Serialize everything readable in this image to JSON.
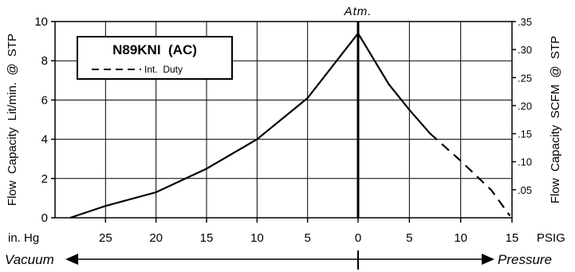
{
  "chart_data": {
    "type": "line",
    "model_label": "N89KNI  (AC)",
    "legend_entry": "Int.  Duty",
    "top_label": "Atm.",
    "left_axis_label": "Flow  Capacity  Lit/min.  @  STP",
    "right_axis_label": "Flow  Capacity  SCFM  @  STP",
    "left_y_ticks": [
      "0",
      "2",
      "4",
      "6",
      "8",
      "10"
    ],
    "left_ylim": [
      0,
      10
    ],
    "right_y_ticks": [
      ".05",
      ".10",
      ".15",
      ".20",
      ".25",
      ".30",
      ".35"
    ],
    "x_unit_left": "in. Hg",
    "x_unit_right": "PSIG",
    "x_ticks_vacuum": [
      "25",
      "20",
      "15",
      "10",
      "5"
    ],
    "x_tick_zero": "0",
    "x_ticks_pressure": [
      "5",
      "10",
      "15"
    ],
    "vacuum_label": "Vacuum",
    "pressure_label": "Pressure",
    "grid": true,
    "series": [
      {
        "region": "vacuum",
        "style": "solid",
        "x_in_hg": [
          28.5,
          25,
          20,
          15,
          10,
          5,
          0
        ],
        "y_lit_min": [
          0.0,
          0.6,
          1.3,
          2.5,
          4.0,
          6.1,
          9.4
        ]
      },
      {
        "region": "pressure",
        "style": "solid",
        "x_psig": [
          0,
          3,
          5,
          7
        ],
        "y_lit_min": [
          9.4,
          6.8,
          5.5,
          4.3
        ]
      },
      {
        "name": "Int.  Duty",
        "region": "pressure",
        "style": "dashed",
        "x_psig": [
          7,
          10,
          13,
          14.8
        ],
        "y_lit_min": [
          4.3,
          2.9,
          1.4,
          0.1
        ]
      }
    ]
  }
}
